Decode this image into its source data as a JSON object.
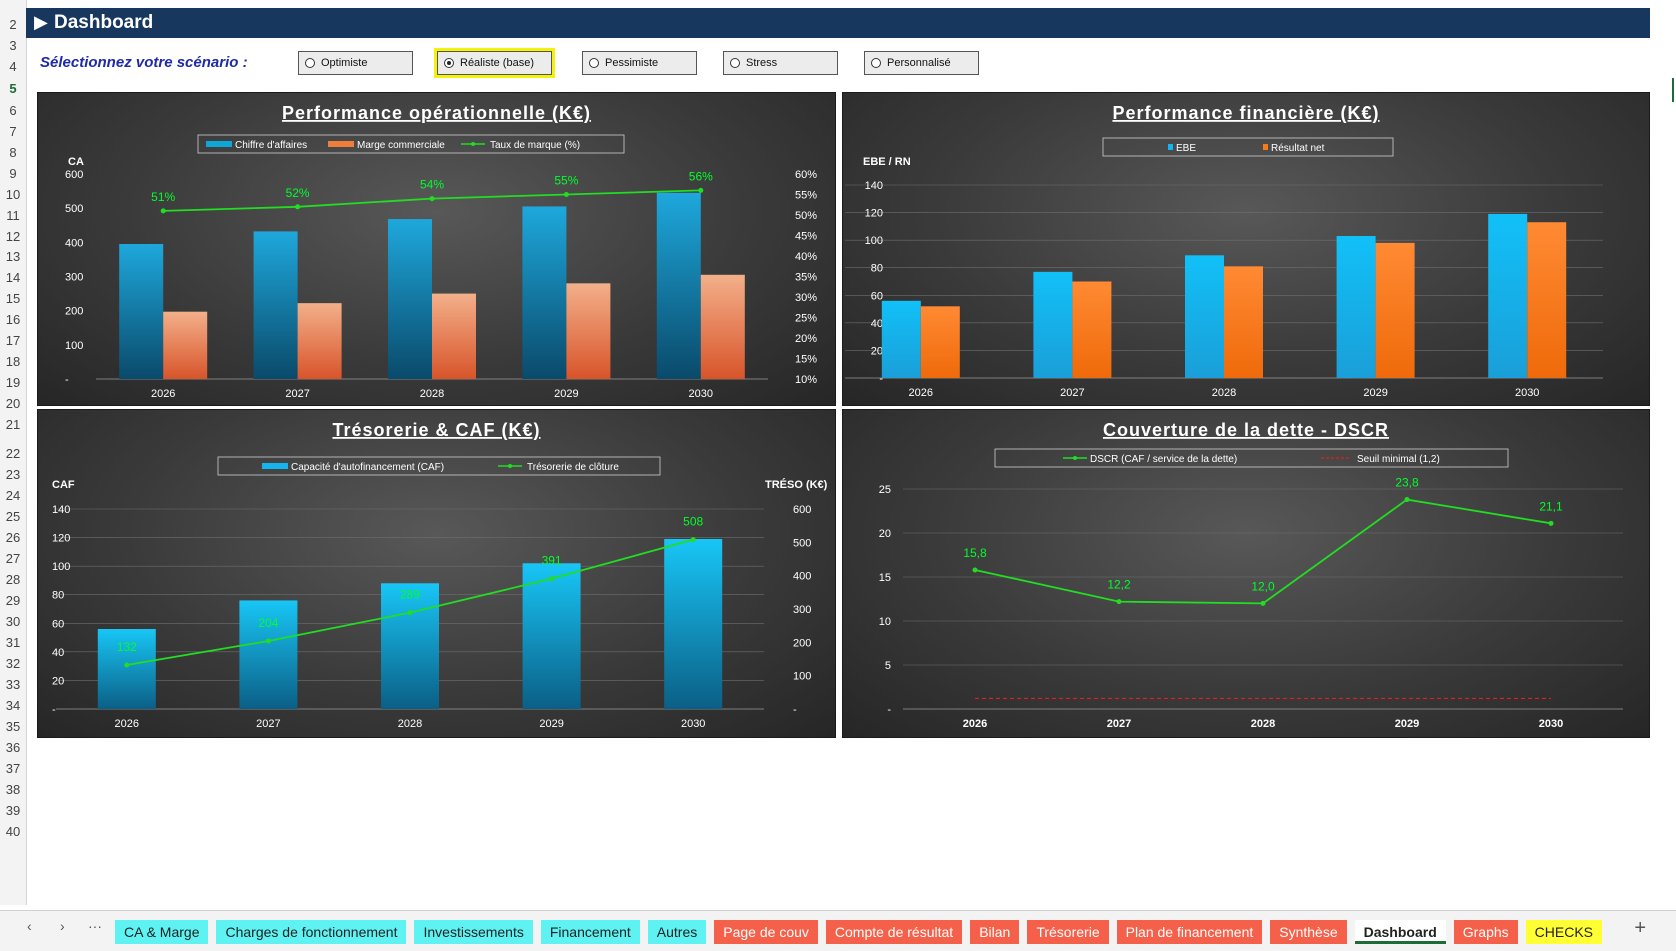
{
  "header": {
    "title": "Dashboard",
    "arrow_icon": "play-triangle-icon"
  },
  "scenario": {
    "prompt": "Sélectionnez votre scénario :",
    "options": [
      {
        "label": "Optimiste",
        "selected": false
      },
      {
        "label": "Réaliste (base)",
        "selected": true
      },
      {
        "label": "Pessimiste",
        "selected": false
      },
      {
        "label": "Stress",
        "selected": false
      },
      {
        "label": "Personnalisé",
        "selected": false
      }
    ]
  },
  "row_numbers": [
    "2",
    "3",
    "4",
    "5",
    "6",
    "7",
    "8",
    "9",
    "10",
    "11",
    "12",
    "13",
    "14",
    "15",
    "16",
    "17",
    "18",
    "19",
    "20",
    "21",
    "22",
    "23",
    "24",
    "25",
    "26",
    "27",
    "28",
    "29",
    "30",
    "31",
    "32",
    "33",
    "34",
    "35",
    "36",
    "37",
    "38",
    "39",
    "40"
  ],
  "chart_data": [
    {
      "type": "bar",
      "title": "Performance opérationnelle (K€)",
      "ylabel": "CA",
      "categories": [
        "2026",
        "2027",
        "2028",
        "2029",
        "2030"
      ],
      "ylim": [
        0,
        600
      ],
      "yticks": [
        "-",
        "100",
        "200",
        "300",
        "400",
        "500",
        "600"
      ],
      "y2lim": [
        10,
        60
      ],
      "y2ticks": [
        "10%",
        "15%",
        "20%",
        "25%",
        "30%",
        "35%",
        "40%",
        "45%",
        "50%",
        "55%",
        "60%"
      ],
      "series": [
        {
          "name": "Chiffre d'affaires",
          "kind": "bar",
          "color": "#0ea5d8",
          "values": [
            395,
            432,
            468,
            505,
            545
          ]
        },
        {
          "name": "Marge commerciale",
          "kind": "bar",
          "color": "#f07d3c",
          "values": [
            197,
            222,
            250,
            280,
            305
          ]
        },
        {
          "name": "Taux de marque (%)",
          "kind": "line",
          "axis": "right",
          "color": "#22dd22",
          "values": [
            51,
            52,
            54,
            55,
            56
          ],
          "labels": [
            "51%",
            "52%",
            "54%",
            "55%",
            "56%"
          ]
        }
      ],
      "legend": "top"
    },
    {
      "type": "bar",
      "title": "Performance financière (K€)",
      "ylabel": "EBE / RN",
      "categories": [
        "2026",
        "2027",
        "2028",
        "2029",
        "2030"
      ],
      "ylim": [
        0,
        140
      ],
      "yticks": [
        "-",
        "20",
        "40",
        "60",
        "80",
        "100",
        "120",
        "140"
      ],
      "series": [
        {
          "name": "EBE",
          "kind": "bar",
          "color": "#14b4ee",
          "values": [
            56,
            77,
            89,
            103,
            119
          ]
        },
        {
          "name": "Résultat net",
          "kind": "bar",
          "color": "#f57a1c",
          "values": [
            52,
            70,
            81,
            98,
            113
          ]
        }
      ],
      "legend": "top"
    },
    {
      "type": "bar",
      "title": "Trésorerie & CAF (K€)",
      "ylabel": "CAF",
      "y2label": "TRÉSO (K€)",
      "categories": [
        "2026",
        "2027",
        "2028",
        "2029",
        "2030"
      ],
      "ylim": [
        0,
        140
      ],
      "yticks": [
        "-",
        "20",
        "40",
        "60",
        "80",
        "100",
        "120",
        "140"
      ],
      "y2lim": [
        0,
        600
      ],
      "y2ticks": [
        "-",
        "100",
        "200",
        "300",
        "400",
        "500",
        "600"
      ],
      "series": [
        {
          "name": "Capacité d'autofinancement (CAF)",
          "kind": "bar",
          "color": "#14b4ee",
          "values": [
            56,
            76,
            88,
            102,
            119
          ]
        },
        {
          "name": "Trésorerie de clôture",
          "kind": "line",
          "axis": "right",
          "color": "#22dd22",
          "values": [
            132,
            204,
            289,
            391,
            508
          ],
          "labels": [
            "132",
            "204",
            "289",
            "391",
            "508"
          ]
        }
      ],
      "legend": "top"
    },
    {
      "type": "line",
      "title": "Couverture de la dette - DSCR",
      "categories": [
        "2026",
        "2027",
        "2028",
        "2029",
        "2030"
      ],
      "ylim": [
        0,
        25
      ],
      "yticks": [
        "-",
        "5",
        "10",
        "15",
        "20",
        "25"
      ],
      "series": [
        {
          "name": "DSCR (CAF / service de la dette)",
          "kind": "line",
          "color": "#22dd22",
          "values": [
            15.8,
            12.2,
            12.0,
            23.8,
            21.1
          ],
          "labels": [
            "15,8",
            "12,2",
            "12,0",
            "23,8",
            "21,1"
          ]
        },
        {
          "name": "Seuil minimal (1,2)",
          "kind": "dashed",
          "color": "#e02020",
          "values": [
            1.2,
            1.2,
            1.2,
            1.2,
            1.2
          ]
        }
      ],
      "legend": "top"
    }
  ],
  "tabs": [
    {
      "label": "CA & Marge",
      "color": "cyan"
    },
    {
      "label": "Charges de fonctionnement",
      "color": "cyan"
    },
    {
      "label": "Investissements",
      "color": "cyan"
    },
    {
      "label": "Financement",
      "color": "cyan"
    },
    {
      "label": "Autres",
      "color": "cyan"
    },
    {
      "label": "Page de couv",
      "color": "red"
    },
    {
      "label": "Compte de résultat",
      "color": "red"
    },
    {
      "label": "Bilan",
      "color": "red"
    },
    {
      "label": "Trésorerie",
      "color": "red"
    },
    {
      "label": "Plan de financement",
      "color": "red"
    },
    {
      "label": "Synthèse",
      "color": "red"
    },
    {
      "label": "Dashboard",
      "color": "active"
    },
    {
      "label": "Graphs",
      "color": "red"
    },
    {
      "label": "CHECKS",
      "color": "yellow"
    }
  ],
  "tabbar_nav": {
    "prev": "‹",
    "next": "›",
    "more": "···",
    "add": "+"
  }
}
